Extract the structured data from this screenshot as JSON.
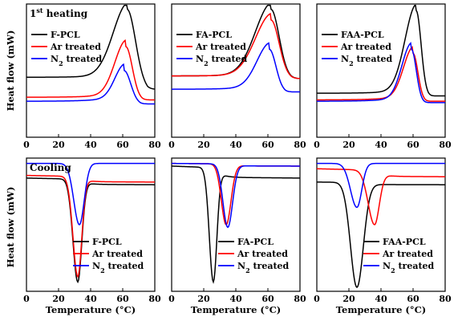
{
  "chart_data": [
    {
      "type": "line",
      "title": "1st heating",
      "title_sup": "st",
      "xlim": [
        0,
        80
      ],
      "ylim": [
        0,
        1
      ],
      "xticks": [
        0,
        20,
        40,
        60,
        80
      ],
      "legend": "top-left",
      "series": [
        {
          "name": "F-PCL",
          "color": "#000000",
          "baseline": 0.45,
          "start": 0.36,
          "peak_x": 63,
          "peak_y": 0.96,
          "end_y": 0.36,
          "w_left": 9,
          "w_right": 5
        },
        {
          "name": "Ar treated",
          "color": "#ff0000",
          "baseline": 0.3,
          "start": 0.28,
          "peak_x": 62,
          "peak_y": 0.68,
          "end_y": 0.28,
          "w_left": 7,
          "w_right": 4
        },
        {
          "name": "N₂ treated",
          "color": "#0000ff",
          "baseline": 0.27,
          "start": 0.25,
          "peak_x": 61,
          "peak_y": 0.5,
          "end_y": 0.25,
          "w_left": 6,
          "w_right": 4
        }
      ]
    },
    {
      "type": "line",
      "title": "",
      "xlim": [
        0,
        80
      ],
      "ylim": [
        0,
        1
      ],
      "xticks": [
        0,
        20,
        40,
        60,
        80
      ],
      "legend": "top-left",
      "series": [
        {
          "name": "FA-PCL",
          "color": "#000000",
          "baseline": 0.46,
          "start": 0.44,
          "peak_x": 62,
          "peak_y": 0.96,
          "end_y": 0.44,
          "w_left": 10,
          "w_right": 5
        },
        {
          "name": "Ar treated",
          "color": "#ff0000",
          "baseline": 0.46,
          "start": 0.44,
          "peak_x": 62,
          "peak_y": 0.88,
          "end_y": 0.44,
          "w_left": 10,
          "w_right": 5
        },
        {
          "name": "N₂ treated",
          "color": "#0000ff",
          "baseline": 0.36,
          "start": 0.34,
          "peak_x": 61,
          "peak_y": 0.66,
          "end_y": 0.34,
          "w_left": 8,
          "w_right": 4
        }
      ]
    },
    {
      "type": "line",
      "title": "",
      "xlim": [
        0,
        80
      ],
      "ylim": [
        0,
        1
      ],
      "xticks": [
        0,
        20,
        40,
        60,
        80
      ],
      "legend": "top-left",
      "series": [
        {
          "name": "FAA-PCL",
          "color": "#000000",
          "baseline": 0.33,
          "start": 0.31,
          "peak_x": 62,
          "peak_y": 0.95,
          "end_y": 0.31,
          "w_left": 7,
          "w_right": 3
        },
        {
          "name": "Ar treated",
          "color": "#ff0000",
          "baseline": 0.28,
          "start": 0.27,
          "peak_x": 60,
          "peak_y": 0.63,
          "end_y": 0.27,
          "w_left": 6,
          "w_right": 3
        },
        {
          "name": "N₂ treated",
          "color": "#0000ff",
          "baseline": 0.27,
          "start": 0.26,
          "peak_x": 59,
          "peak_y": 0.66,
          "end_y": 0.26,
          "w_left": 6,
          "w_right": 3
        }
      ]
    },
    {
      "type": "line",
      "title": "Cooling",
      "xlim": [
        0,
        80
      ],
      "ylim": [
        0,
        1
      ],
      "xticks": [
        0,
        20,
        40,
        60,
        80
      ],
      "legend": "bottom-right",
      "series": [
        {
          "name": "F-PCL",
          "color": "#000000",
          "left": 0.85,
          "right": 0.8,
          "peak_x": 32,
          "peak_y": 0.07,
          "w_left": 3,
          "w_right": 2.5
        },
        {
          "name": "Ar treated",
          "color": "#ff0000",
          "left": 0.87,
          "right": 0.82,
          "peak_x": 32,
          "peak_y": 0.11,
          "w_left": 3,
          "w_right": 2.5
        },
        {
          "name": "N₂ treated",
          "color": "#0000ff",
          "left": 0.96,
          "right": 0.96,
          "peak_x": 33,
          "peak_y": 0.5,
          "w_left": 3.5,
          "w_right": 3
        }
      ]
    },
    {
      "type": "line",
      "title": "",
      "xlim": [
        0,
        80
      ],
      "ylim": [
        0,
        1
      ],
      "xticks": [
        0,
        20,
        40,
        60,
        80
      ],
      "legend": "bottom-right",
      "series": [
        {
          "name": "FA-PCL",
          "color": "#000000",
          "left": 0.94,
          "right": 0.85,
          "peak_x": 26,
          "peak_y": 0.07,
          "w_left": 2.5,
          "w_right": 2.2
        },
        {
          "name": "Ar treated",
          "color": "#ff0000",
          "left": 0.96,
          "right": 0.94,
          "peak_x": 34,
          "peak_y": 0.5,
          "w_left": 3,
          "w_right": 3
        },
        {
          "name": "N₂ treated",
          "color": "#0000ff",
          "left": 0.96,
          "right": 0.94,
          "peak_x": 35,
          "peak_y": 0.48,
          "w_left": 3,
          "w_right": 3
        }
      ]
    },
    {
      "type": "line",
      "title": "",
      "xlim": [
        0,
        80
      ],
      "ylim": [
        0,
        1
      ],
      "xticks": [
        0,
        20,
        40,
        60,
        80
      ],
      "legend": "bottom-right",
      "series": [
        {
          "name": "FAA-PCL",
          "color": "#000000",
          "left": 0.82,
          "right": 0.8,
          "peak_x": 25,
          "peak_y": 0.03,
          "w_left": 4,
          "w_right": 4
        },
        {
          "name": "Ar treated",
          "color": "#ff0000",
          "left": 0.92,
          "right": 0.86,
          "peak_x": 36,
          "peak_y": 0.5,
          "w_left": 4,
          "w_right": 3
        },
        {
          "name": "N₂ treated",
          "color": "#0000ff",
          "left": 0.96,
          "right": 0.96,
          "peak_x": 25,
          "peak_y": 0.63,
          "w_left": 4,
          "w_right": 3
        }
      ]
    }
  ],
  "figure": {
    "ylabel": "Heat flow (mW)",
    "xlabel": "Temperature (°C)"
  }
}
